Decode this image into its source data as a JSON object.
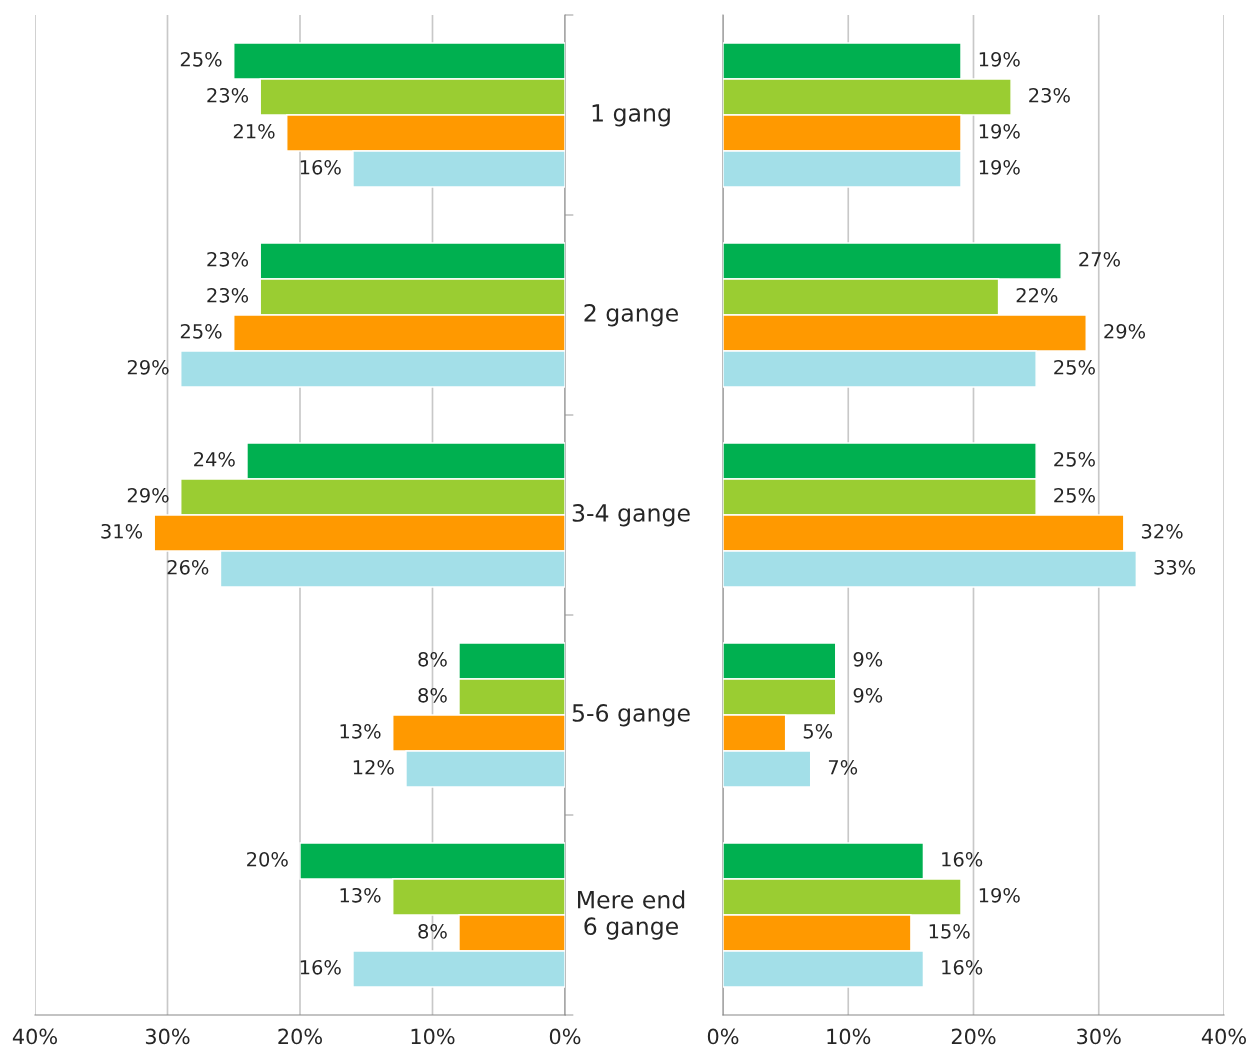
{
  "chart_data": [
    {
      "type": "bar",
      "orientation": "horizontal",
      "categories": [
        "1 gang",
        "2 gange",
        "3-4 gange",
        "5-6 gange",
        "Mere end\n6 gange"
      ],
      "series": [
        {
          "color": "#00b050",
          "values": [
            25,
            23,
            24,
            8,
            20
          ],
          "value_labels": [
            "25%",
            "23%",
            "24%",
            "8%",
            "20%"
          ]
        },
        {
          "color": "#9acd32",
          "values": [
            23,
            23,
            29,
            8,
            13
          ],
          "value_labels": [
            "23%",
            "23%",
            "29%",
            "8%",
            "13%"
          ]
        },
        {
          "color": "#ff9900",
          "values": [
            21,
            25,
            31,
            13,
            8
          ],
          "value_labels": [
            "21%",
            "25%",
            "31%",
            "13%",
            "8%"
          ]
        },
        {
          "color": "#a3dfe8",
          "values": [
            16,
            29,
            26,
            12,
            16
          ],
          "value_labels": [
            "16%",
            "29%",
            "26%",
            "12%",
            "16%"
          ]
        }
      ],
      "xlim": [
        40,
        0
      ],
      "xticks": [
        {
          "value": 40,
          "label": "40%"
        },
        {
          "value": 30,
          "label": "30%"
        },
        {
          "value": 20,
          "label": "20%"
        },
        {
          "value": 10,
          "label": "10%"
        },
        {
          "value": 0,
          "label": "0%"
        }
      ],
      "grid": "x",
      "legend": false
    },
    {
      "type": "bar",
      "orientation": "horizontal",
      "categories": [
        null,
        null,
        null,
        null,
        null
      ],
      "series": [
        {
          "color": "#00b050",
          "values": [
            19,
            27,
            25,
            9,
            16
          ],
          "value_labels": [
            "19%",
            "27%",
            "25%",
            "9%",
            "16%"
          ]
        },
        {
          "color": "#9acd32",
          "values": [
            23,
            22,
            25,
            9,
            19
          ],
          "value_labels": [
            "23%",
            "22%",
            "25%",
            "9%",
            "19%"
          ]
        },
        {
          "color": "#ff9900",
          "values": [
            19,
            29,
            32,
            5,
            15
          ],
          "value_labels": [
            "19%",
            "29%",
            "32%",
            "5%",
            "15%"
          ]
        },
        {
          "color": "#a3dfe8",
          "values": [
            19,
            25,
            33,
            7,
            16
          ],
          "value_labels": [
            "19%",
            "25%",
            "33%",
            "7%",
            "16%"
          ]
        }
      ],
      "xlim": [
        0,
        40
      ],
      "xticks": [
        {
          "value": 0,
          "label": "0%"
        },
        {
          "value": 10,
          "label": "10%"
        },
        {
          "value": 20,
          "label": "20%"
        },
        {
          "value": 30,
          "label": "30%"
        },
        {
          "value": 40,
          "label": "40%"
        }
      ],
      "grid": "x",
      "tick_labels": "x",
      "legend": false
    }
  ]
}
